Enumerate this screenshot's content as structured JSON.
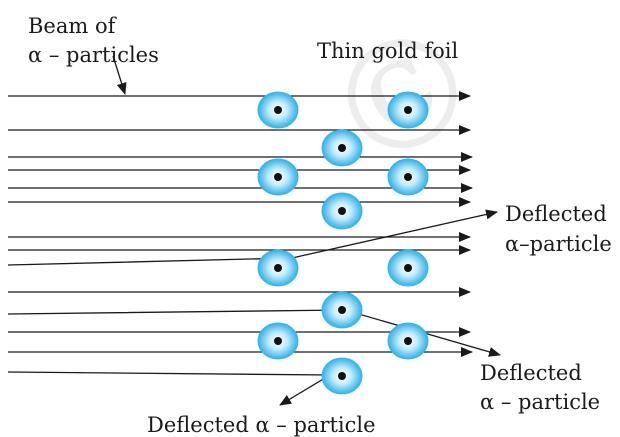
{
  "labels": {
    "beam_line1": "Beam of",
    "beam_line2": "α – particles",
    "foil": "Thin gold foil",
    "deflected_right_line1": "Deflected",
    "deflected_right_line2": "α–particle",
    "deflected_lower_line1": "Deflected",
    "deflected_lower_line2": "α – particle",
    "deflected_back": "Deflected α – particle"
  },
  "watermark": "©",
  "colors": {
    "nucleus_outer": "#37b8ec",
    "nucleus_inner": "#c6ecfb",
    "nucleus_core": "#111111",
    "line": "#1a1a1a"
  }
}
